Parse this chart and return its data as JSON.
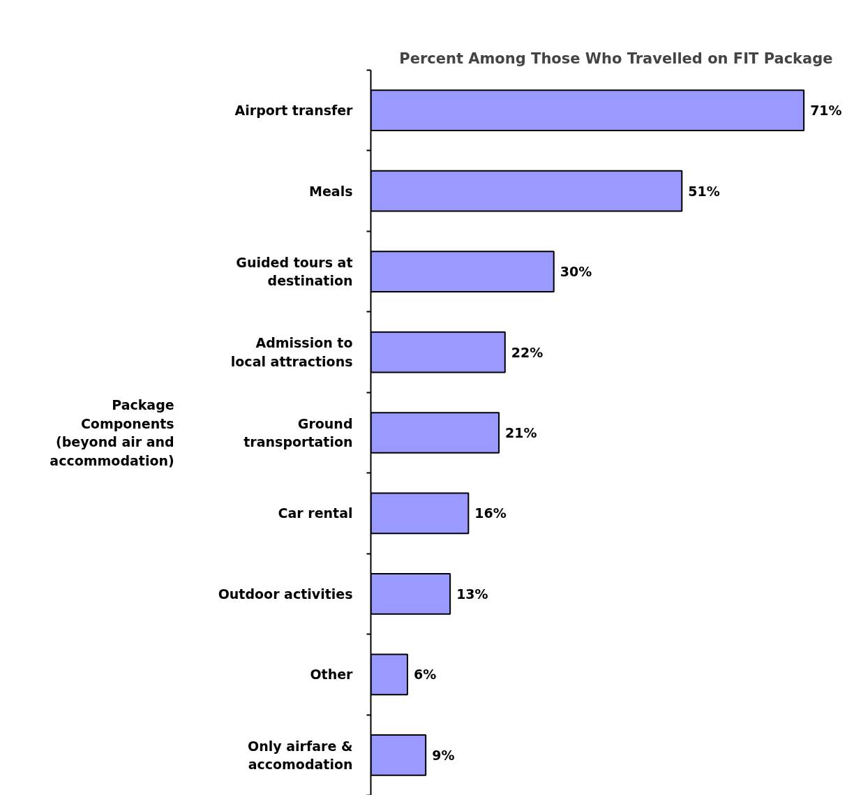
{
  "chart_data": {
    "type": "bar",
    "orientation": "horizontal",
    "title": "Percent Among Those Who Travelled on FIT Package",
    "ylabel": "Package\nComponents\n(beyond air and\naccommodation)",
    "categories": [
      "Airport transfer",
      "Meals",
      "Guided tours at\ndestination",
      "Admission to\nlocal attractions",
      "Ground\ntransportation",
      "Car rental",
      "Outdoor activities",
      "Other",
      "Only airfare &\naccomodation"
    ],
    "values": [
      71,
      51,
      30,
      22,
      21,
      16,
      13,
      6,
      9
    ],
    "value_labels": [
      "71%",
      "51%",
      "30%",
      "22%",
      "21%",
      "16%",
      "13%",
      "6%",
      "9%"
    ],
    "color": "#9999ff",
    "tick_labels": "y"
  }
}
